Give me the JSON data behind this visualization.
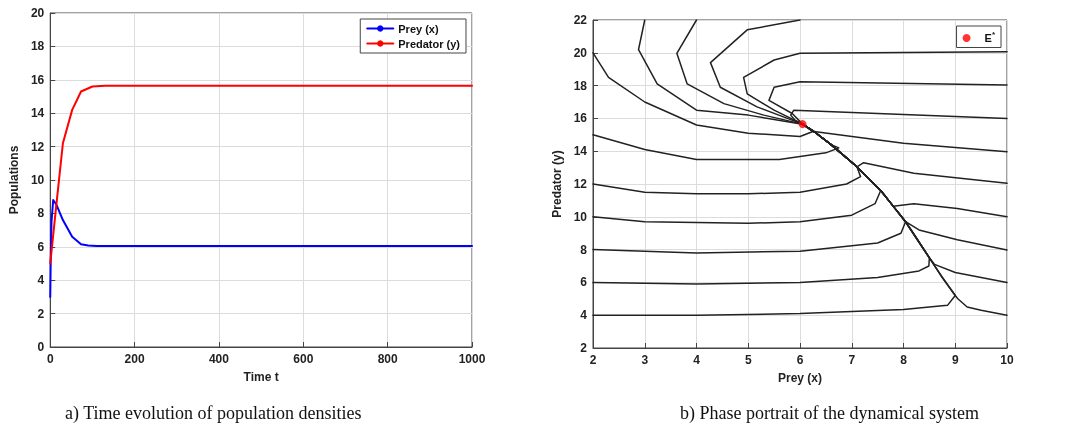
{
  "chart_data": [
    {
      "type": "line",
      "xlabel": "Time t",
      "ylabel": "Populations",
      "xlim": [
        0,
        1000
      ],
      "xticks": [
        0,
        200,
        400,
        600,
        800,
        1000
      ],
      "ylim": [
        0,
        20
      ],
      "yticks": [
        0,
        2,
        4,
        6,
        8,
        10,
        12,
        14,
        16,
        18,
        20
      ],
      "grid": true,
      "legend": "top right",
      "annotations": [
        "a) Time evolution of population densities"
      ],
      "series": [
        {
          "name": "Prey (x)",
          "color": "#0000ff",
          "x": [
            0,
            1,
            3,
            7,
            15,
            30,
            52,
            73,
            90,
            110,
            200,
            400,
            600,
            800,
            1000
          ],
          "values": [
            3,
            5,
            7.5,
            8.8,
            8.5,
            7.6,
            6.6,
            6.15,
            6.08,
            6.05,
            6.05,
            6.05,
            6.05,
            6.05,
            6.05
          ]
        },
        {
          "name": "Predator (y)",
          "color": "#ff0000",
          "x": [
            0,
            14,
            30,
            52,
            73,
            100,
            130,
            200,
            400,
            600,
            800,
            1000
          ],
          "values": [
            5,
            8.4,
            12.2,
            14.2,
            15.3,
            15.6,
            15.65,
            15.65,
            15.65,
            15.65,
            15.65,
            15.65
          ]
        }
      ]
    },
    {
      "type": "line",
      "xlabel": "Prey (x)",
      "ylabel": "Predator (y)",
      "xlim": [
        2,
        10
      ],
      "xticks": [
        2,
        3,
        4,
        5,
        6,
        7,
        8,
        9,
        10
      ],
      "ylim": [
        2,
        22
      ],
      "yticks": [
        2,
        4,
        6,
        8,
        10,
        12,
        14,
        16,
        18,
        20,
        22
      ],
      "grid": true,
      "legend": "top right",
      "annotations": [
        "b) Phase portrait of the dynamical system"
      ],
      "series": [
        {
          "color": "#222222",
          "x": [
            2,
            4,
            6,
            8,
            8.85,
            9,
            8.75,
            8.5,
            8.27,
            8.04,
            7.8,
            7.56,
            7.1,
            6.6,
            6.27,
            6.05
          ],
          "values": [
            4,
            4,
            4.1,
            4.35,
            4.6,
            5.2,
            6.3,
            7.5,
            8.6,
            9.7,
            10.65,
            11.6,
            13.05,
            14.4,
            15.2,
            15.65
          ]
        },
        {
          "color": "#222222",
          "x": [
            2,
            4,
            6,
            7.5,
            8.3,
            8.49,
            8.5,
            8.27,
            8.04,
            7.8,
            7.56,
            7.1,
            6.6,
            6.27,
            6.05
          ],
          "values": [
            6,
            5.9,
            6,
            6.3,
            6.7,
            7.0,
            7.5,
            8.6,
            9.7,
            10.65,
            11.6,
            13.05,
            14.4,
            15.2,
            15.65
          ]
        },
        {
          "color": "#222222",
          "x": [
            2,
            4,
            6,
            7.5,
            7.95,
            8.04,
            7.8,
            7.56,
            7.1,
            6.6,
            6.27,
            6.05
          ],
          "values": [
            8,
            7.8,
            7.9,
            8.4,
            9.0,
            9.7,
            10.65,
            11.6,
            13.05,
            14.4,
            15.2,
            15.65
          ]
        },
        {
          "color": "#222222",
          "x": [
            2,
            3,
            5,
            6,
            7,
            7.45,
            7.56,
            7.1,
            6.6,
            6.27,
            6.05
          ],
          "values": [
            10,
            9.7,
            9.6,
            9.7,
            10.1,
            10.8,
            11.6,
            13.05,
            14.4,
            15.2,
            15.65
          ]
        },
        {
          "color": "#222222",
          "x": [
            2,
            3,
            4,
            5,
            6,
            6.9,
            7.17,
            7.1,
            6.6,
            6.27,
            6.05
          ],
          "values": [
            12,
            11.5,
            11.4,
            11.4,
            11.5,
            12.0,
            12.45,
            13.05,
            14.4,
            15.2,
            15.65
          ]
        },
        {
          "color": "#222222",
          "x": [
            2,
            3,
            4,
            5.6,
            6.5,
            6.75,
            6.6,
            6.27,
            6.05
          ],
          "values": [
            15,
            14.1,
            13.5,
            13.5,
            13.9,
            14.2,
            14.4,
            15.2,
            15.65
          ]
        },
        {
          "color": "#222222",
          "x": [
            2,
            2.3,
            3,
            4,
            5,
            6,
            6.25,
            6.05
          ],
          "values": [
            20,
            18.5,
            17,
            15.6,
            15.1,
            14.9,
            15.2,
            15.65
          ]
        },
        {
          "color": "#222222",
          "x": [
            3,
            2.88,
            3.24,
            4,
            5,
            6.05
          ],
          "values": [
            22,
            20.2,
            18.1,
            16.5,
            16.2,
            15.65
          ]
        },
        {
          "color": "#222222",
          "x": [
            4,
            3.62,
            3.82,
            4.53,
            5.3,
            6.05
          ],
          "values": [
            22,
            19.97,
            18.1,
            16.9,
            16.2,
            15.65
          ]
        },
        {
          "color": "#222222",
          "x": [
            6,
            4.98,
            4.27,
            4.46,
            5.17,
            6.05
          ],
          "values": [
            22,
            21.4,
            19.4,
            17.9,
            16.7,
            15.65
          ]
        },
        {
          "color": "#222222",
          "x": [
            10,
            6,
            5.5,
            4.91,
            4.98,
            5.5,
            6.05
          ],
          "values": [
            20.07,
            19.97,
            19.56,
            18.5,
            17.5,
            16.5,
            15.65
          ]
        },
        {
          "color": "#222222",
          "x": [
            10,
            6,
            5.5,
            5.4,
            5.85,
            6.05
          ],
          "values": [
            18.04,
            18.24,
            17.9,
            17.1,
            16.3,
            15.65
          ]
        },
        {
          "color": "#222222",
          "x": [
            10,
            5.88,
            5.82,
            5.9,
            6.05
          ],
          "values": [
            16,
            16.5,
            16.2,
            15.9,
            15.65
          ]
        },
        {
          "color": "#222222",
          "x": [
            10,
            8,
            6.27,
            6.05
          ],
          "values": [
            13.97,
            14.48,
            15.2,
            15.65
          ]
        },
        {
          "color": "#222222",
          "x": [
            10,
            8.2,
            7.23,
            7.1,
            6.6,
            6.27,
            6.05
          ],
          "values": [
            12.04,
            12.65,
            13.3,
            13.05,
            14.4,
            15.2,
            15.65
          ]
        },
        {
          "color": "#222222",
          "x": [
            10,
            9.04,
            8.2,
            7.8,
            7.56,
            7.1,
            6.6,
            6.27,
            6.05
          ],
          "values": [
            10,
            10.5,
            10.8,
            10.65,
            11.6,
            13.05,
            14.4,
            15.2,
            15.65
          ]
        },
        {
          "color": "#222222",
          "x": [
            10,
            9.04,
            8.3,
            8.04,
            7.8,
            7.56,
            7.1,
            6.6,
            6.27,
            6.05
          ],
          "values": [
            7.98,
            8.6,
            9.2,
            9.7,
            10.65,
            11.6,
            13.05,
            14.4,
            15.2,
            15.65
          ]
        },
        {
          "color": "#222222",
          "x": [
            10,
            9,
            8.6,
            8.5,
            8.27,
            8.04,
            7.8,
            7.56,
            7.1,
            6.6,
            6.27,
            6.05
          ],
          "values": [
            6,
            6.6,
            7.1,
            7.5,
            8.6,
            9.7,
            10.65,
            11.6,
            13.05,
            14.4,
            15.2,
            15.65
          ]
        },
        {
          "color": "#222222",
          "x": [
            10,
            9.5,
            9.23,
            9.05,
            9,
            8.75,
            8.5,
            8.27,
            8.04,
            7.8,
            7.56,
            7.1,
            6.6,
            6.27,
            6.05
          ],
          "values": [
            4,
            4.3,
            4.5,
            5.0,
            5.2,
            6.3,
            7.5,
            8.6,
            9.7,
            10.65,
            11.6,
            13.05,
            14.4,
            15.2,
            15.65
          ]
        },
        {
          "name": "E$^{*}$",
          "type": "scatter",
          "marker": "circle",
          "color": "#ff0000",
          "x": [
            6.05
          ],
          "values": [
            15.65
          ]
        }
      ]
    }
  ]
}
